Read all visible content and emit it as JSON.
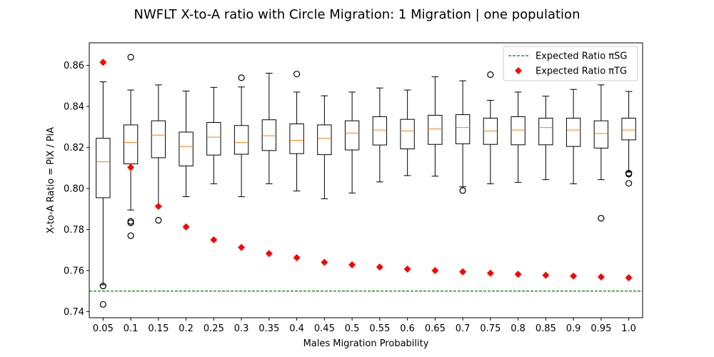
{
  "chart_data": {
    "type": "box",
    "title": "NWFLT X-to-A ratio with Circle Migration: 1 Migration | one population",
    "xlabel": "Males Migration Probability",
    "ylabel": "X-to-A Ratio = PiX / PiA",
    "categories": [
      "0.05",
      "0.1",
      "0.15",
      "0.2",
      "0.25",
      "0.3",
      "0.35",
      "0.4",
      "0.45",
      "0.5",
      "0.55",
      "0.6",
      "0.65",
      "0.7",
      "0.75",
      "0.8",
      "0.85",
      "0.9",
      "0.95",
      "1.0"
    ],
    "ylim": [
      0.737,
      0.871
    ],
    "yticks": [
      "0.74",
      "0.76",
      "0.78",
      "0.80",
      "0.82",
      "0.84",
      "0.86"
    ],
    "grid": false,
    "legend_position": "top-right",
    "boxes": [
      {
        "whislo": 0.753,
        "q1": 0.7955,
        "med": 0.813,
        "q3": 0.8245,
        "whishi": 0.852,
        "fliers": [
          0.7525,
          0.7435
        ]
      },
      {
        "whislo": 0.7895,
        "q1": 0.812,
        "med": 0.8225,
        "q3": 0.831,
        "whishi": 0.848,
        "fliers": [
          0.864,
          0.784,
          0.7833,
          0.777
        ]
      },
      {
        "whislo": 0.7915,
        "q1": 0.815,
        "med": 0.826,
        "q3": 0.833,
        "whishi": 0.8505,
        "fliers": [
          0.7845
        ]
      },
      {
        "whislo": 0.796,
        "q1": 0.811,
        "med": 0.8205,
        "q3": 0.8275,
        "whishi": 0.8475,
        "fliers": []
      },
      {
        "whislo": 0.8023,
        "q1": 0.8163,
        "med": 0.825,
        "q3": 0.8322,
        "whishi": 0.8493,
        "fliers": []
      },
      {
        "whislo": 0.796,
        "q1": 0.8167,
        "med": 0.8225,
        "q3": 0.8307,
        "whishi": 0.8495,
        "fliers": [
          0.854
        ]
      },
      {
        "whislo": 0.8023,
        "q1": 0.8185,
        "med": 0.8257,
        "q3": 0.8335,
        "whishi": 0.8562,
        "fliers": []
      },
      {
        "whislo": 0.7988,
        "q1": 0.817,
        "med": 0.8235,
        "q3": 0.8315,
        "whishi": 0.847,
        "fliers": [
          0.8558
        ]
      },
      {
        "whislo": 0.795,
        "q1": 0.8165,
        "med": 0.8245,
        "q3": 0.831,
        "whishi": 0.8452,
        "fliers": []
      },
      {
        "whislo": 0.7978,
        "q1": 0.8188,
        "med": 0.827,
        "q3": 0.833,
        "whishi": 0.847,
        "fliers": []
      },
      {
        "whislo": 0.8032,
        "q1": 0.8212,
        "med": 0.8285,
        "q3": 0.835,
        "whishi": 0.849,
        "fliers": []
      },
      {
        "whislo": 0.8063,
        "q1": 0.8193,
        "med": 0.828,
        "q3": 0.8337,
        "whishi": 0.848,
        "fliers": []
      },
      {
        "whislo": 0.806,
        "q1": 0.8215,
        "med": 0.829,
        "q3": 0.8357,
        "whishi": 0.8545,
        "fliers": []
      },
      {
        "whislo": 0.8008,
        "q1": 0.8218,
        "med": 0.8297,
        "q3": 0.836,
        "whishi": 0.8525,
        "fliers": [
          0.799
        ]
      },
      {
        "whislo": 0.8023,
        "q1": 0.8215,
        "med": 0.828,
        "q3": 0.8343,
        "whishi": 0.843,
        "fliers": [
          0.8555
        ]
      },
      {
        "whislo": 0.803,
        "q1": 0.8213,
        "med": 0.8285,
        "q3": 0.835,
        "whishi": 0.847,
        "fliers": []
      },
      {
        "whislo": 0.8043,
        "q1": 0.8213,
        "med": 0.8297,
        "q3": 0.8343,
        "whishi": 0.845,
        "fliers": []
      },
      {
        "whislo": 0.8023,
        "q1": 0.8205,
        "med": 0.8285,
        "q3": 0.8343,
        "whishi": 0.8483,
        "fliers": []
      },
      {
        "whislo": 0.8043,
        "q1": 0.8197,
        "med": 0.8268,
        "q3": 0.833,
        "whishi": 0.8505,
        "fliers": [
          0.7855
        ]
      },
      {
        "whislo": 0.808,
        "q1": 0.8237,
        "med": 0.8285,
        "q3": 0.8343,
        "whishi": 0.8473,
        "fliers": [
          0.8075,
          0.807,
          0.8025
        ]
      }
    ],
    "series": [
      {
        "name": "Expected Ratio πSG",
        "type": "hline",
        "color": "#008000",
        "value": 0.75
      },
      {
        "name": "Expected Ratio πTG",
        "type": "scatter",
        "color": "#ff0000",
        "values": [
          0.8615,
          0.8103,
          0.7913,
          0.7813,
          0.775,
          0.7713,
          0.7683,
          0.7663,
          0.764,
          0.7628,
          0.7617,
          0.7607,
          0.76,
          0.7594,
          0.7587,
          0.7582,
          0.7577,
          0.7573,
          0.7569,
          0.7565
        ]
      }
    ],
    "colors": {
      "box": "#000000",
      "median": "#ff7f0e",
      "hline": "#008000",
      "marker": "#ff0000"
    }
  }
}
